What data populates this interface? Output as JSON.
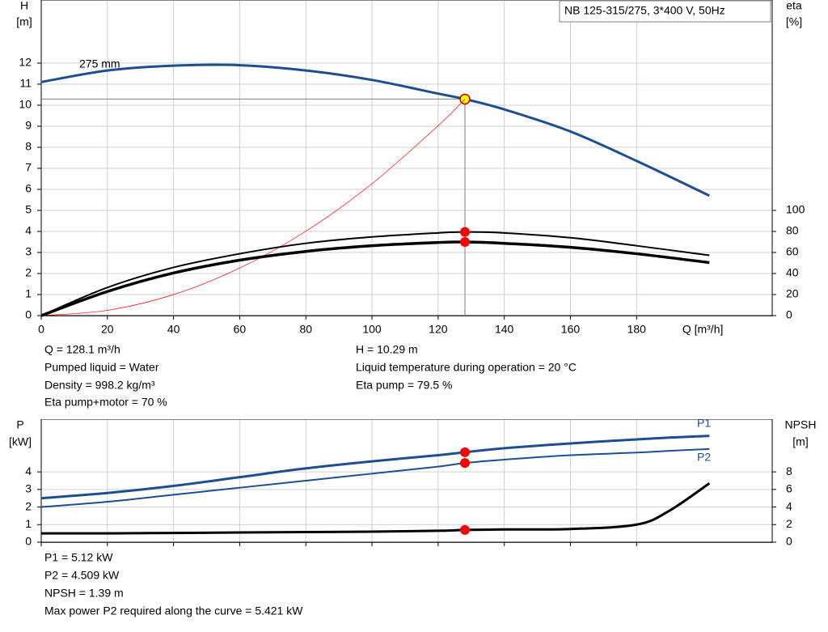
{
  "chart_data": [
    {
      "type": "line",
      "title": "NB 125-315/275, 3*400 V, 50Hz",
      "y_label": [
        "H",
        "[m]"
      ],
      "y2_label": [
        "eta",
        "[%]"
      ],
      "x_label": "Q [m³/h]",
      "x": [
        0,
        20,
        40,
        60,
        80,
        100,
        120,
        128.1,
        140,
        160,
        180,
        202
      ],
      "series": [
        {
          "name": "275 mm",
          "color": "#1f4e8c",
          "marker": "#ffff00",
          "values": [
            11.1,
            11.65,
            11.88,
            11.9,
            11.65,
            11.2,
            10.55,
            10.29,
            9.8,
            8.75,
            7.35,
            5.7
          ]
        },
        {
          "color": "#ff0000",
          "values": [
            0,
            0.25,
            1.0,
            2.26,
            4.01,
            6.27,
            9.03,
            10.29,
            null,
            null,
            null,
            null
          ]
        },
        {
          "color": "#000000",
          "marker": "#ff0000",
          "axis": "y2",
          "values": [
            0,
            26.7,
            45.8,
            58.8,
            68.7,
            74.8,
            78.6,
            79.5,
            78.6,
            74,
            66.4,
            57.3
          ]
        },
        {
          "color": "#000000",
          "marker": "#ff0000",
          "axis": "y2",
          "values": [
            0,
            22.9,
            40.5,
            52.7,
            61,
            66.4,
            69.5,
            70,
            68.7,
            64.9,
            58.8,
            50.4
          ]
        }
      ],
      "operating_point": {
        "x": 128.1,
        "y": 10.29
      },
      "xlim": [
        0,
        221
      ],
      "xticks": [
        0,
        20,
        40,
        60,
        80,
        100,
        120,
        140,
        160,
        180
      ],
      "ylim": [
        0,
        15
      ],
      "yticks": [
        0,
        1,
        2,
        3,
        4,
        5,
        6,
        7,
        8,
        9,
        10,
        11,
        12
      ],
      "y2lim": [
        0,
        300
      ],
      "y2ticks": [
        0,
        20,
        40,
        60,
        80,
        100
      ],
      "grid": true,
      "annotations": [
        "Q = 128.1 m³/h",
        "Pumped liquid = Water",
        "Density = 998.2 kg/m³",
        "Eta pump+motor = 70 %",
        "H = 10.29 m",
        "Liquid temperature during operation = 20 °C",
        "Eta pump = 79.5 %"
      ]
    },
    {
      "type": "line",
      "y_label": [
        "P",
        "[kW]"
      ],
      "y2_label": [
        "NPSH",
        "[m]"
      ],
      "x": [
        0,
        20,
        40,
        60,
        80,
        100,
        120,
        128.1,
        140,
        160,
        180,
        190,
        202
      ],
      "series": [
        {
          "name": "P1",
          "color": "#1f4e8c",
          "marker": "#ff0000",
          "values": [
            2.5,
            2.8,
            3.2,
            3.7,
            4.2,
            4.6,
            4.95,
            5.12,
            5.35,
            5.62,
            5.85,
            5.95,
            6.05
          ]
        },
        {
          "name": "P2",
          "color": "#1f4e8c",
          "marker": "#ff0000",
          "values": [
            2.0,
            2.3,
            2.7,
            3.1,
            3.5,
            3.9,
            4.3,
            4.509,
            4.7,
            4.95,
            5.1,
            5.2,
            5.3
          ]
        },
        {
          "color": "#000000",
          "marker": "#ff0000",
          "axis": "y2",
          "values": [
            1.0,
            1.0,
            1.05,
            1.1,
            1.15,
            1.2,
            1.3,
            1.39,
            1.45,
            1.5,
            2.0,
            3.6,
            6.7
          ]
        }
      ],
      "operating_point": {
        "x": 128.1
      },
      "xlim": [
        0,
        221
      ],
      "xticks": [
        0,
        20,
        40,
        60,
        80,
        100,
        120,
        140,
        160,
        180
      ],
      "ylim": [
        0,
        7
      ],
      "yticks": [
        0,
        1,
        2,
        3,
        4
      ],
      "y2lim": [
        0,
        14
      ],
      "y2ticks": [
        0,
        2,
        4,
        6,
        8
      ],
      "grid": true,
      "annotations": [
        "P1 = 5.12 kW",
        "P2 = 4.509 kW",
        "NPSH = 1.39 m",
        "Max power P2 required along the curve = 5.421 kW"
      ]
    }
  ]
}
